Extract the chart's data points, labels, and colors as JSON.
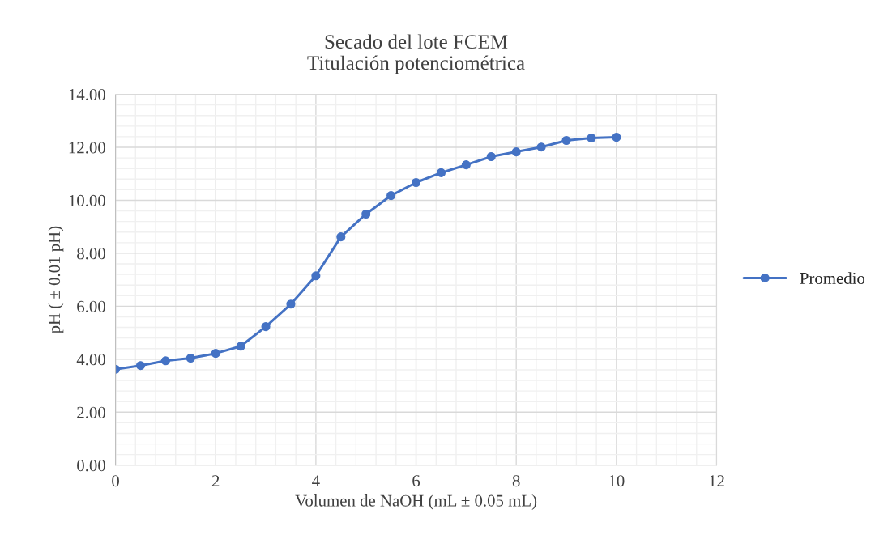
{
  "chart_data": {
    "type": "line",
    "title": "Secado del lote FCEM\nTitulación potenciométrica",
    "xlabel": "Volumen de NaOH (mL ± 0.05 mL)",
    "ylabel": "pH ( ± 0.01 pH)",
    "x": [
      0,
      0.5,
      1,
      1.5,
      2,
      2.5,
      3,
      3.5,
      4,
      4.5,
      5,
      5.5,
      6,
      6.5,
      7,
      7.5,
      8,
      8.5,
      9,
      9.5,
      10
    ],
    "series": [
      {
        "name": "Promedio",
        "color": "#4472c4",
        "values": [
          3.62,
          3.76,
          3.94,
          4.04,
          4.22,
          4.49,
          5.23,
          6.08,
          7.15,
          8.62,
          9.48,
          10.18,
          10.67,
          11.04,
          11.34,
          11.65,
          11.83,
          12.01,
          12.26,
          12.35,
          12.38
        ]
      }
    ],
    "xlim": [
      0,
      12
    ],
    "xticks": [
      0,
      2,
      4,
      6,
      8,
      10,
      12
    ],
    "ylim": [
      0,
      14
    ],
    "yticks": [
      {
        "value": 0,
        "label": "0.00"
      },
      {
        "value": 2,
        "label": "2.00"
      },
      {
        "value": 4,
        "label": "4.00"
      },
      {
        "value": 6,
        "label": "6.00"
      },
      {
        "value": 8,
        "label": "8.00"
      },
      {
        "value": 10,
        "label": "10.00"
      },
      {
        "value": 12,
        "label": "12.00"
      },
      {
        "value": 14,
        "label": "14.00"
      }
    ],
    "grid": true,
    "legend": "right",
    "marker": "circle",
    "line_style": "solid"
  }
}
